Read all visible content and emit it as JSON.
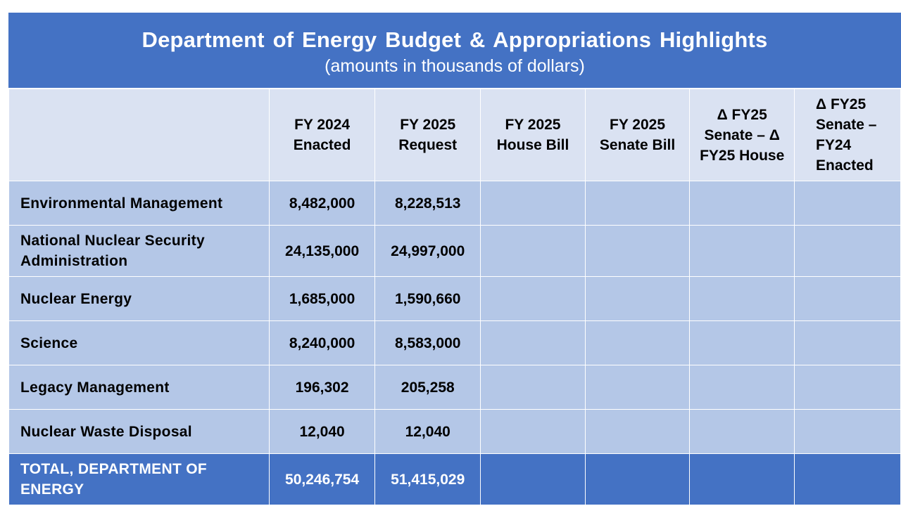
{
  "title": "Department of Energy Budget & Appropriations Highlights",
  "subtitle": "(amounts in thousands of dollars)",
  "table": {
    "headers": [
      "",
      "FY 2024 Enacted",
      "FY 2025 Request",
      "FY 2025 House Bill",
      "FY 2025 Senate Bill",
      "Δ FY25 Senate – Δ FY25 House",
      "Δ FY25 Senate – FY24 Enacted"
    ],
    "rows": [
      {
        "label": "Environmental Management",
        "fy2024_enacted": "8,482,000",
        "fy2025_request": "8,228,513",
        "fy2025_house": "",
        "fy2025_senate": "",
        "delta_senate_house": "",
        "delta_senate_fy24": ""
      },
      {
        "label": "National Nuclear Security Administration",
        "fy2024_enacted": "24,135,000",
        "fy2025_request": "24,997,000",
        "fy2025_house": "",
        "fy2025_senate": "",
        "delta_senate_house": "",
        "delta_senate_fy24": ""
      },
      {
        "label": "Nuclear Energy",
        "fy2024_enacted": "1,685,000",
        "fy2025_request": "1,590,660",
        "fy2025_house": "",
        "fy2025_senate": "",
        "delta_senate_house": "",
        "delta_senate_fy24": ""
      },
      {
        "label": "Science",
        "fy2024_enacted": "8,240,000",
        "fy2025_request": "8,583,000",
        "fy2025_house": "",
        "fy2025_senate": "",
        "delta_senate_house": "",
        "delta_senate_fy24": ""
      },
      {
        "label": "Legacy Management",
        "fy2024_enacted": "196,302",
        "fy2025_request": "205,258",
        "fy2025_house": "",
        "fy2025_senate": "",
        "delta_senate_house": "",
        "delta_senate_fy24": ""
      },
      {
        "label": "Nuclear Waste Disposal",
        "fy2024_enacted": "12,040",
        "fy2025_request": "12,040",
        "fy2025_house": "",
        "fy2025_senate": "",
        "delta_senate_house": "",
        "delta_senate_fy24": ""
      }
    ],
    "total": {
      "label": "TOTAL, DEPARTMENT OF ENERGY",
      "fy2024_enacted": "50,246,754",
      "fy2025_request": "51,415,029",
      "fy2025_house": "",
      "fy2025_senate": "",
      "delta_senate_house": "",
      "delta_senate_fy24": ""
    }
  },
  "colors": {
    "title_band": "#4472c4",
    "header_row": "#dae2f2",
    "body_row": "#b4c7e7",
    "total_row": "#4472c4"
  }
}
